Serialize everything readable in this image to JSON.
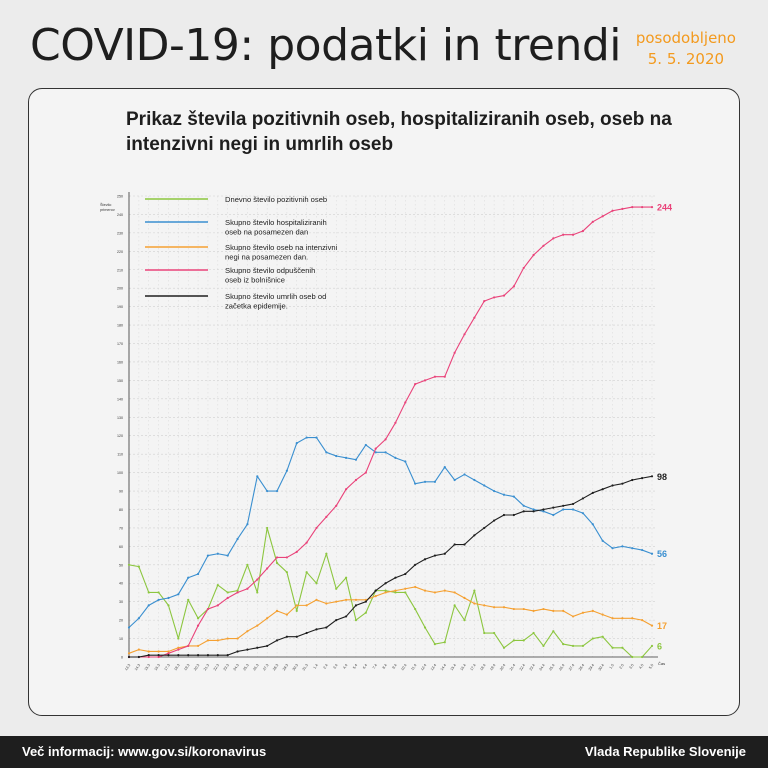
{
  "header": {
    "title": "COVID-19: podatki in trendi",
    "updated_label": "posodobljeno",
    "updated_date": "5. 5. 2020"
  },
  "footer": {
    "info": "Več informacij: www.gov.si/koronavirus",
    "publisher": "Vlada Republike Slovenije"
  },
  "colors": {
    "accent": "#f39a1e",
    "positive": "#8cc63f",
    "hospitalized": "#3a8fd0",
    "icu": "#f5a031",
    "discharged": "#e9437a",
    "deaths": "#1e1e1e"
  },
  "chart_data": {
    "type": "line",
    "title": "Prikaz števila pozitivnih oseb, hospitaliziranih oseb, oseb na intenzivni negi in umrlih oseb",
    "ylabel": "Število primerov",
    "xlabel": "Čas",
    "ylim": [
      0,
      250
    ],
    "yticks": [
      0,
      10,
      20,
      30,
      40,
      50,
      60,
      70,
      80,
      90,
      100,
      110,
      120,
      130,
      140,
      150,
      160,
      170,
      180,
      190,
      200,
      210,
      220,
      230,
      240,
      250
    ],
    "grid": true,
    "legend_position": "top-left",
    "categories": [
      "13.3",
      "14.3",
      "15.3",
      "16.3",
      "17.3",
      "18.3",
      "19.3",
      "20.3",
      "21.3",
      "22.3",
      "23.3",
      "24.3",
      "25.3",
      "26.3",
      "27.3",
      "28.3",
      "29.3",
      "30.3",
      "31.3",
      "1.4",
      "2.4",
      "3.4",
      "4.4",
      "5.4",
      "6.4",
      "7.4",
      "8.4",
      "9.4",
      "10.4",
      "11.4",
      "12.4",
      "13.4",
      "14.4",
      "15.4",
      "16.4",
      "17.4",
      "18.4",
      "19.4",
      "20.4",
      "21.4",
      "22.4",
      "23.4",
      "24.4",
      "25.4",
      "26.4",
      "27.4",
      "28.4",
      "29.4",
      "30.4",
      "1.5",
      "2.5",
      "3.5",
      "4.5",
      "5.5"
    ],
    "series": [
      {
        "name": "Dnevno število pozitivnih oseb",
        "color": "#8cc63f",
        "end_label": "6",
        "values": [
          50,
          49,
          35,
          35,
          28,
          10,
          31,
          21,
          26,
          39,
          35,
          36,
          50,
          35,
          70,
          51,
          46,
          25,
          46,
          40,
          56,
          37,
          43,
          20,
          24,
          36,
          36,
          35,
          35,
          26,
          16,
          7,
          8,
          28,
          20,
          36,
          13,
          13,
          5,
          9,
          9,
          13,
          6,
          14,
          7,
          6,
          6,
          10,
          11,
          5,
          5,
          0,
          0,
          6
        ]
      },
      {
        "name": "Skupno število hospitaliziranih oseb na posamezen dan",
        "color": "#3a8fd0",
        "end_label": "56",
        "values": [
          16,
          21,
          28,
          31,
          32,
          34,
          43,
          45,
          55,
          56,
          55,
          64,
          72,
          98,
          90,
          90,
          101,
          116,
          119,
          119,
          111,
          109,
          108,
          107,
          115,
          111,
          111,
          108,
          106,
          94,
          95,
          95,
          103,
          96,
          99,
          96,
          93,
          90,
          88,
          87,
          82,
          80,
          79,
          77,
          80,
          80,
          78,
          72,
          63,
          59,
          60,
          59,
          58,
          56
        ]
      },
      {
        "name": "Skupno število oseb na intenzivni negi na posamezen dan.",
        "color": "#f5a031",
        "end_label": "17",
        "values": [
          2,
          4,
          3,
          3,
          3,
          5,
          6,
          6,
          9,
          9,
          10,
          10,
          14,
          17,
          21,
          25,
          23,
          28,
          28,
          31,
          29,
          30,
          31,
          31,
          31,
          33,
          35,
          36,
          37,
          38,
          36,
          35,
          36,
          35,
          32,
          29,
          28,
          27,
          27,
          26,
          26,
          25,
          26,
          25,
          25,
          22,
          24,
          25,
          23,
          21,
          21,
          21,
          20,
          17
        ]
      },
      {
        "name": "Skupno število odpuščenih oseb iz bolnišnice",
        "color": "#e9437a",
        "end_label": "244",
        "values": [
          0,
          0,
          0,
          0,
          2,
          4,
          6,
          17,
          26,
          28,
          32,
          35,
          37,
          42,
          48,
          54,
          54,
          57,
          62,
          70,
          76,
          82,
          91,
          96,
          100,
          113,
          118,
          127,
          138,
          148,
          150,
          152,
          152,
          165,
          175,
          184,
          193,
          195,
          196,
          201,
          211,
          218,
          223,
          227,
          229,
          229,
          231,
          236,
          239,
          242,
          243,
          244,
          244,
          244
        ]
      },
      {
        "name": "Skupno število umrlih oseb od začetka epidemije.",
        "color": "#1e1e1e",
        "end_label": "98",
        "values": [
          0,
          0,
          1,
          1,
          1,
          1,
          1,
          1,
          1,
          1,
          1,
          3,
          4,
          5,
          6,
          9,
          11,
          11,
          13,
          15,
          16,
          20,
          22,
          28,
          30,
          36,
          40,
          43,
          45,
          50,
          53,
          55,
          56,
          61,
          61,
          66,
          70,
          74,
          77,
          77,
          79,
          79,
          80,
          81,
          82,
          83,
          86,
          89,
          91,
          93,
          94,
          96,
          97,
          98
        ]
      }
    ]
  }
}
